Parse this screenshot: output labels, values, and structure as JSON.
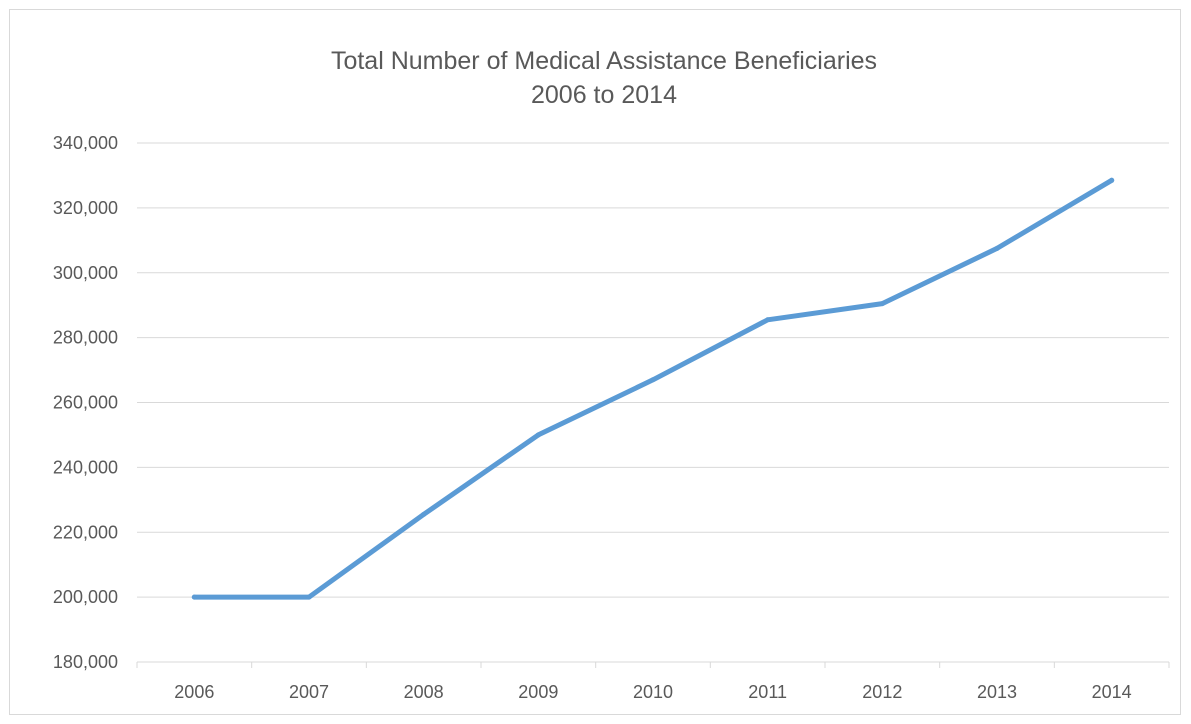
{
  "chart_data": {
    "type": "line",
    "title_lines": [
      "Total Number of Medical Assistance Beneficiaries",
      "2006 to 2014"
    ],
    "xlabel": "",
    "ylabel": "",
    "categories": [
      "2006",
      "2007",
      "2008",
      "2009",
      "2010",
      "2011",
      "2012",
      "2013",
      "2014"
    ],
    "series": [
      {
        "values": [
          200000,
          200000,
          225500,
          250000,
          267000,
          285500,
          290500,
          307500,
          328500
        ]
      }
    ],
    "ylim": [
      180000,
      340000
    ],
    "y_ticks": [
      180000,
      200000,
      220000,
      240000,
      260000,
      280000,
      300000,
      320000,
      340000
    ],
    "y_tick_labels": [
      "180,000",
      "200,000",
      "220,000",
      "240,000",
      "260,000",
      "280,000",
      "300,000",
      "320,000",
      "340,000"
    ],
    "grid": "horizontal",
    "legend": "none",
    "line_color": "#5b9bd5"
  }
}
